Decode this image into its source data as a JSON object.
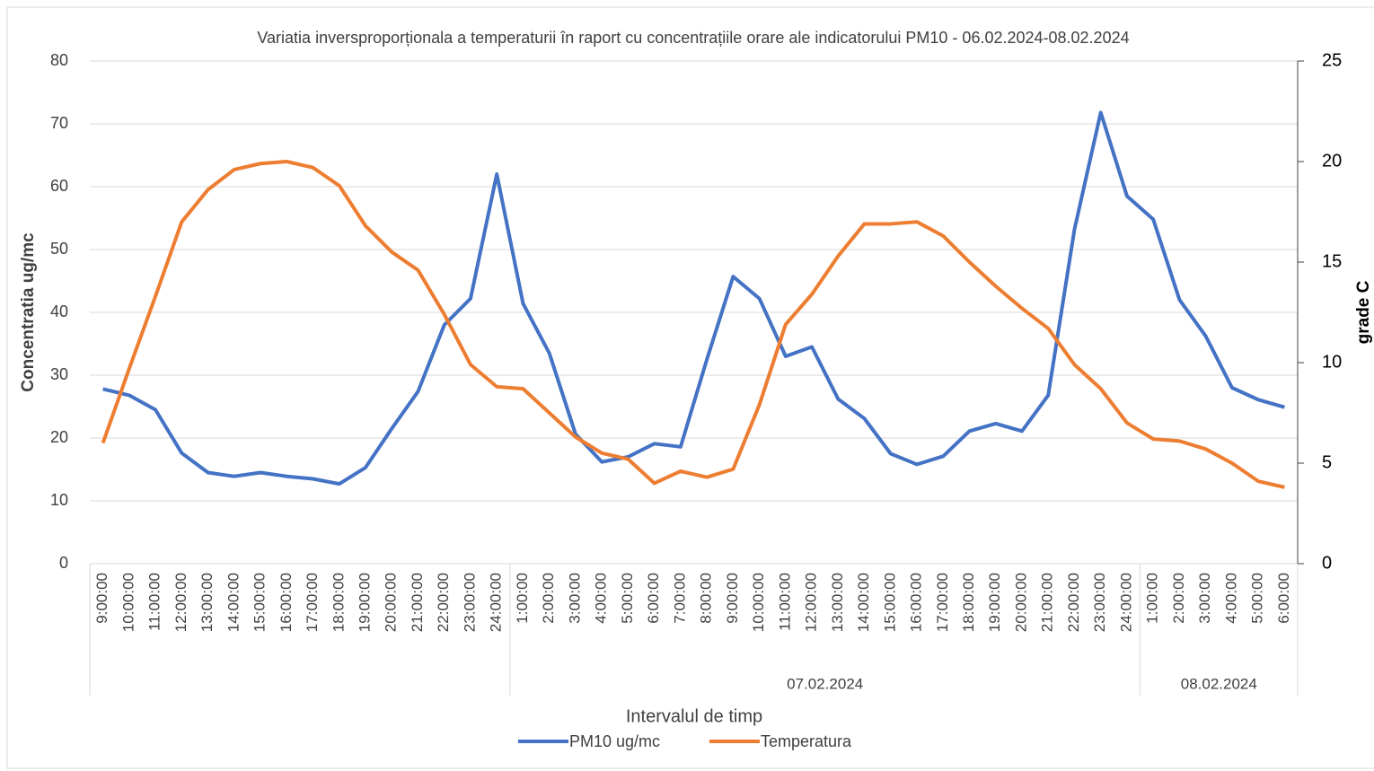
{
  "chart_data": {
    "type": "line",
    "title": "Variatia inversproporționala a temperaturii în raport cu concentrațiile orare ale indicatorului PM10 - 06.02.2024-08.02.2024",
    "ylabel": "Concentratia ug/mc",
    "y2label": "grade C",
    "xlabel": "Intervalul de timp",
    "category_groups": [
      {
        "name": null,
        "categories": [
          "9:00:00",
          "10:00:00",
          "11:00:00",
          "12:00:00",
          "13:00:00",
          "14:00:00",
          "15:00:00",
          "16:00:00",
          "17:00:00",
          "18:00:00",
          "19:00:00",
          "20:00:00",
          "21:00:00",
          "22:00:00",
          "23:00:00",
          "24:00:00"
        ]
      },
      {
        "name": "07.02.2024",
        "categories": [
          "1:00:00",
          "2:00:00",
          "3:00:00",
          "4:00:00",
          "5:00:00",
          "6:00:00",
          "7:00:00",
          "8:00:00",
          "9:00:00",
          "10:00:00",
          "11:00:00",
          "12:00:00",
          "13:00:00",
          "14:00:00",
          "15:00:00",
          "16:00:00",
          "17:00:00",
          "18:00:00",
          "19:00:00",
          "20:00:00",
          "21:00:00",
          "22:00:00",
          "23:00:00",
          "24:00:00"
        ]
      },
      {
        "name": "08.02.2024",
        "categories": [
          "1:00:00",
          "2:00:00",
          "3:00:00",
          "4:00:00",
          "5:00:00",
          "6:00:00"
        ]
      }
    ],
    "series": [
      {
        "name": "PM10 ug/mc",
        "color": "#4472c4",
        "axis": "y",
        "values": [
          27.8,
          26.8,
          24.5,
          17.6,
          14.5,
          13.9,
          14.5,
          13.9,
          13.5,
          12.7,
          15.3,
          21.5,
          27.4,
          38,
          42.2,
          62,
          41.4,
          33.5,
          20.6,
          16.2,
          17,
          19.1,
          18.6,
          32.5,
          45.7,
          42.2,
          33,
          34.5,
          26.2,
          23.1,
          17.5,
          15.8,
          17.1,
          21.1,
          22.3,
          21.1,
          26.8,
          53.2,
          71.8,
          58.5,
          54.8,
          42,
          36.2,
          28,
          26.1,
          24.9
        ]
      },
      {
        "name": "Temperatura",
        "color": "#ed7d31",
        "axis": "y2",
        "values": [
          6.0,
          9.7,
          13.3,
          17.0,
          18.6,
          19.6,
          19.9,
          20.0,
          19.7,
          18.8,
          16.8,
          15.5,
          14.6,
          12.4,
          9.9,
          8.8,
          8.7,
          7.5,
          6.3,
          5.5,
          5.2,
          4.0,
          4.6,
          4.3,
          4.7,
          7.9,
          11.9,
          13.4,
          15.3,
          16.9,
          16.9,
          17.0,
          16.3,
          15.0,
          13.8,
          12.7,
          11.7,
          9.9,
          8.7,
          7.0,
          6.2,
          6.1,
          5.7,
          5.0,
          4.1,
          3.8
        ]
      }
    ],
    "ylim": [
      0,
      80
    ],
    "yticks": [
      0,
      10,
      20,
      30,
      40,
      50,
      60,
      70,
      80
    ],
    "y2lim": [
      0,
      25
    ],
    "y2ticks": [
      0,
      5,
      10,
      15,
      20,
      25
    ],
    "grid": true,
    "legend": "bottom"
  }
}
